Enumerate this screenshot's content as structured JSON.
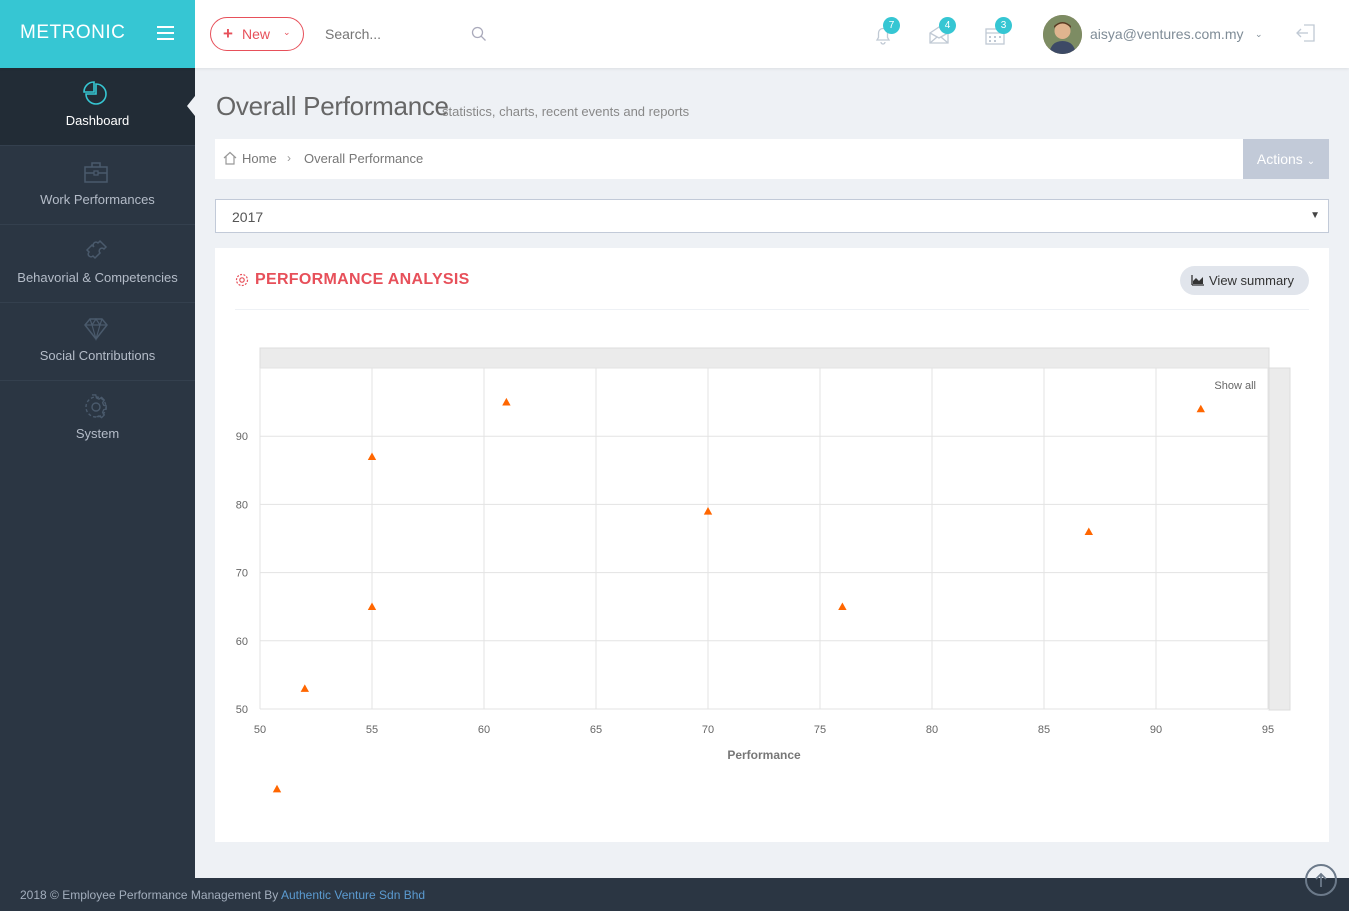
{
  "brand": {
    "name": "METRONIC"
  },
  "header": {
    "new_label": "New",
    "search_placeholder": "Search...",
    "notifications_count": "7",
    "inbox_count": "4",
    "tasks_count": "3",
    "user_email": "aisya@ventures.com.my"
  },
  "sidebar": {
    "items": [
      {
        "label": "Dashboard",
        "icon": "pie-chart-icon"
      },
      {
        "label": "Work Performances",
        "icon": "briefcase-icon"
      },
      {
        "label": "Behavorial & Competencies",
        "icon": "puzzle-icon"
      },
      {
        "label": "Social Contributions",
        "icon": "diamond-icon"
      },
      {
        "label": "System",
        "icon": "gear-icon"
      }
    ]
  },
  "page": {
    "title": "Overall Performance",
    "subtitle": "statistics, charts, recent events and reports"
  },
  "breadcrumb": {
    "home": "Home",
    "current": "Overall Performance"
  },
  "actions_label": "Actions",
  "year_select": {
    "value": "2017"
  },
  "portlet": {
    "title": "PERFORMANCE ANALYSIS",
    "view_summary_label": "View summary",
    "show_all_label": "Show all"
  },
  "chart_data": {
    "type": "scatter",
    "xlabel": "Performance",
    "ylabel": "",
    "xlim": [
      50,
      95
    ],
    "ylim": [
      50,
      100
    ],
    "x_ticks": [
      50,
      55,
      60,
      65,
      70,
      75,
      80,
      85,
      90,
      95
    ],
    "y_ticks": [
      50,
      60,
      70,
      80,
      90
    ],
    "grid": true,
    "marker": "triangle",
    "color": "#ff6600",
    "points": [
      {
        "x": 52,
        "y": 53
      },
      {
        "x": 55,
        "y": 87
      },
      {
        "x": 55,
        "y": 65
      },
      {
        "x": 61,
        "y": 95
      },
      {
        "x": 70,
        "y": 79
      },
      {
        "x": 76,
        "y": 65
      },
      {
        "x": 87,
        "y": 76
      },
      {
        "x": 92,
        "y": 94
      }
    ],
    "legend": [
      {
        "marker": "triangle",
        "color": "#ff6600"
      }
    ]
  },
  "footer": {
    "text": "2018 © Employee Performance Management By ",
    "link": "Authentic Venture Sdn Bhd"
  }
}
